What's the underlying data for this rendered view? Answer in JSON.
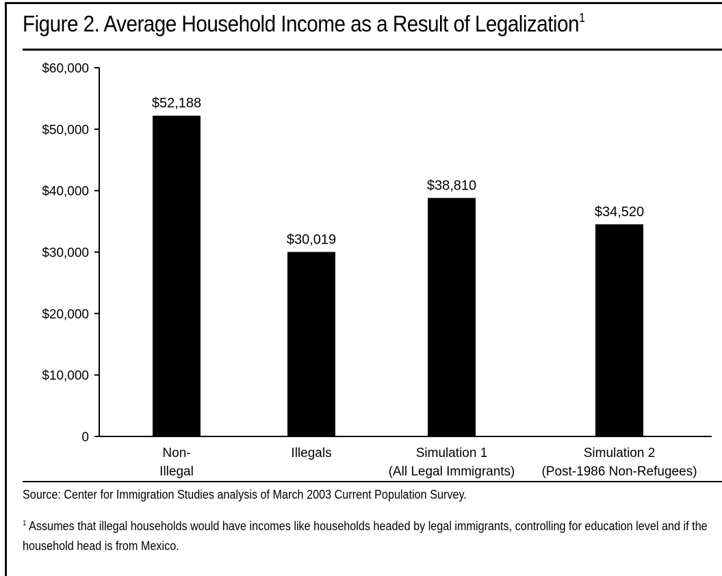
{
  "figure": {
    "title": "Figure 2. Average Household Income as a Result of Legalization",
    "title_superscript": "1"
  },
  "chart_data": {
    "type": "bar",
    "title": "Figure 2. Average Household Income as a Result of Legalization",
    "xlabel": "",
    "ylabel": "",
    "ylim": [
      0,
      60000
    ],
    "yticks": [
      0,
      10000,
      20000,
      30000,
      40000,
      50000,
      60000
    ],
    "ytick_labels": [
      "0",
      "$10,000",
      "$20,000",
      "$30,000",
      "$40,000",
      "$50,000",
      "$60,000"
    ],
    "grid": false,
    "bar_color": "#000000",
    "categories": [
      [
        "Non-",
        "Illegal"
      ],
      [
        "Illegals"
      ],
      [
        "Simulation 1",
        "(All Legal Immigrants)"
      ],
      [
        "Simulation 2",
        "(Post-1986 Non-Refugees)"
      ]
    ],
    "values": [
      52188,
      30019,
      38810,
      34520
    ],
    "data_labels": [
      "$52,188",
      "$30,019",
      "$38,810",
      "$34,520"
    ]
  },
  "notes": {
    "source": "Source: Center for Immigration Studies analysis of March 2003 Current Population Survey.",
    "footnote_marker": "1",
    "footnote_text": "Assumes that illegal households would have incomes like households headed by legal immigrants, controlling for education level and if the household head is from Mexico."
  }
}
